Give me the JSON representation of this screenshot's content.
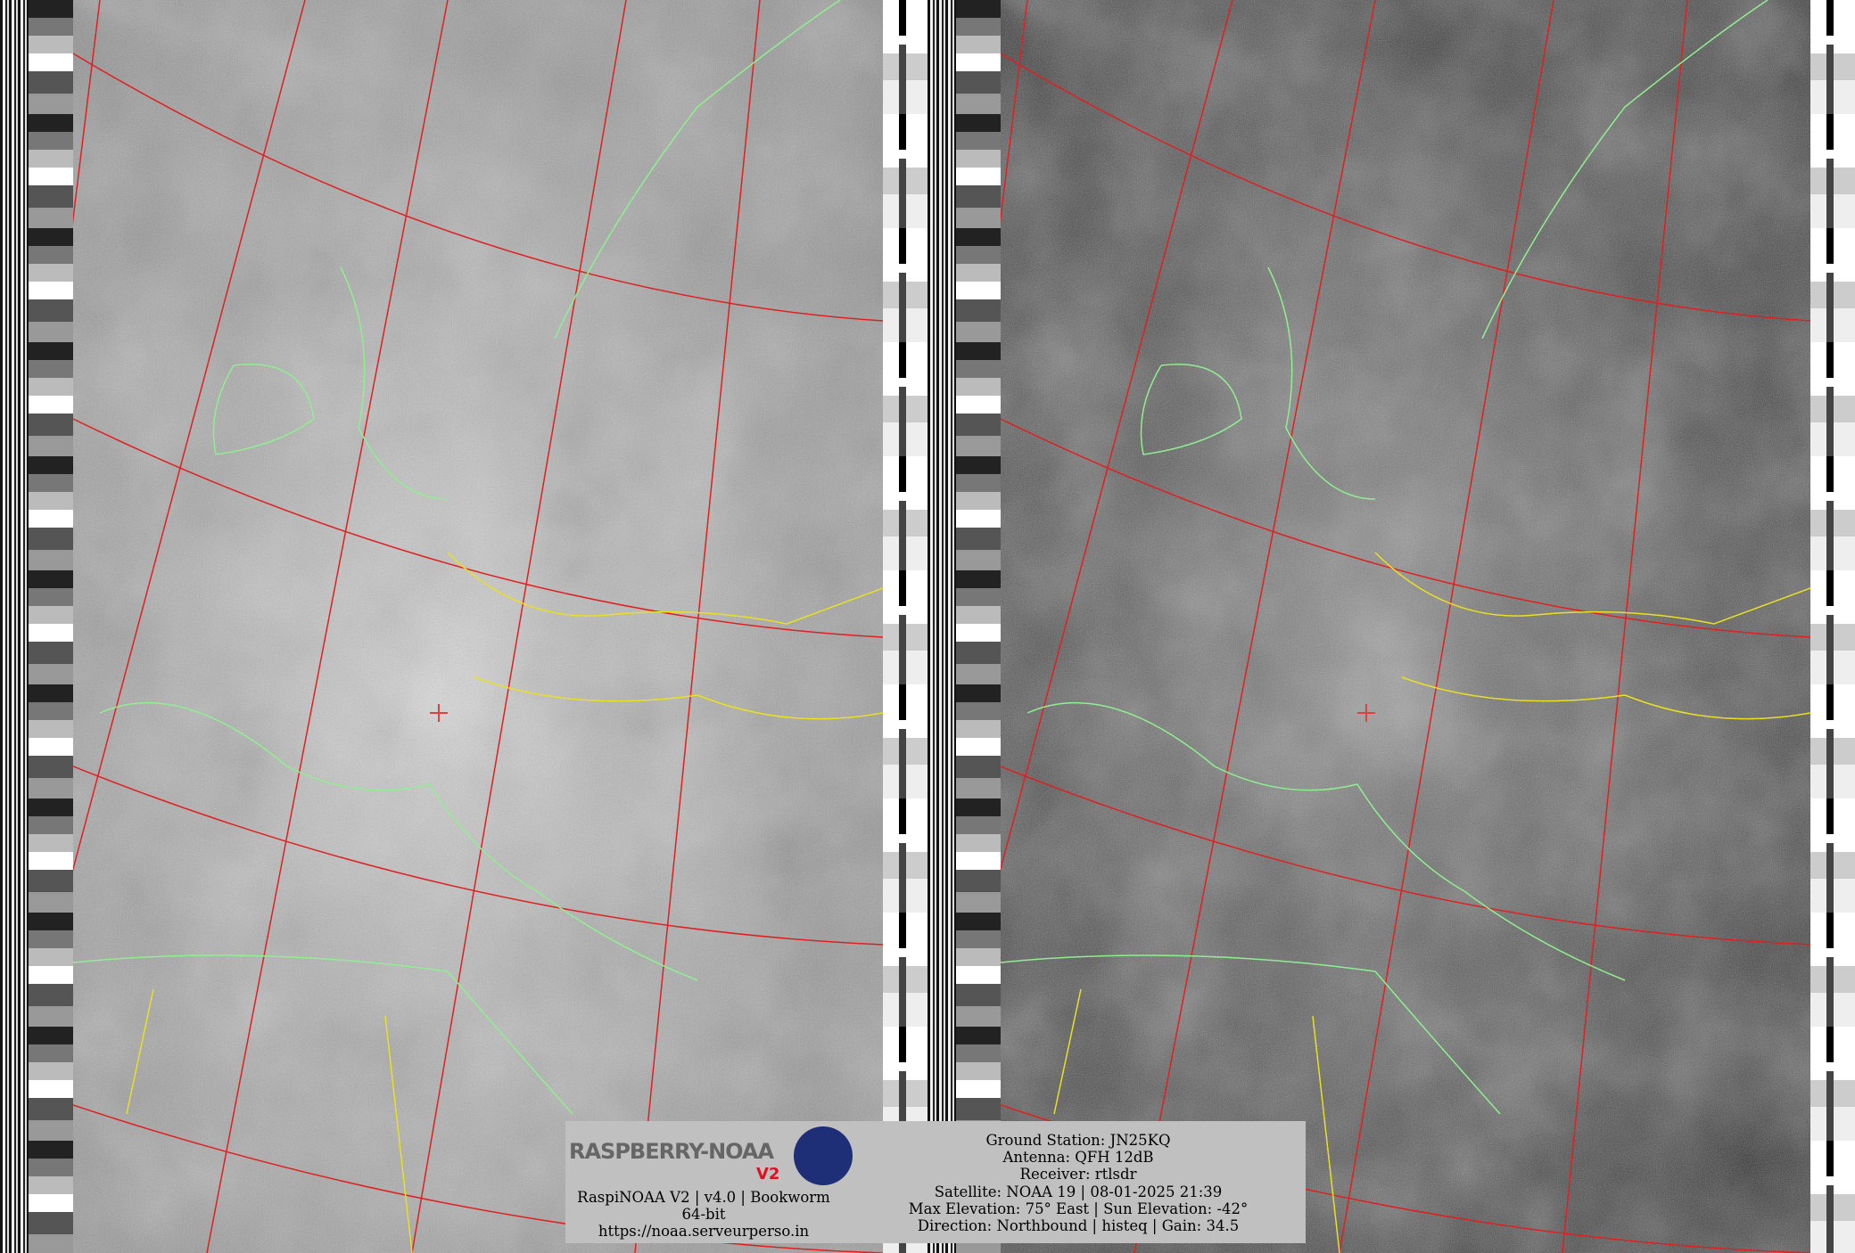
{
  "station_info": {
    "ground_station": "Ground Station: JN25KQ",
    "antenna": "Antenna: QFH 12dB",
    "receiver": "Receiver: rtlsdr",
    "satellite": "Satellite: NOAA 19 | 08-01-2025 21:39",
    "elevation": "Max Elevation: 75° East | Sun Elevation: -42°",
    "direction": "Direction: Northbound | histeq | Gain: 34.5"
  },
  "branding": {
    "logo_text": "RASPBERRY-NOAA",
    "logo_version": "V2",
    "version_line": "RaspiNOAA V2 | v4.0 | Bookworm 64-bit",
    "url": "https://noaa.serveurperso.in"
  },
  "colors": {
    "graticule": "#e02020",
    "coastline": "#90ee90",
    "borders": "#e8e020",
    "info_background": "#c0c0c0"
  }
}
